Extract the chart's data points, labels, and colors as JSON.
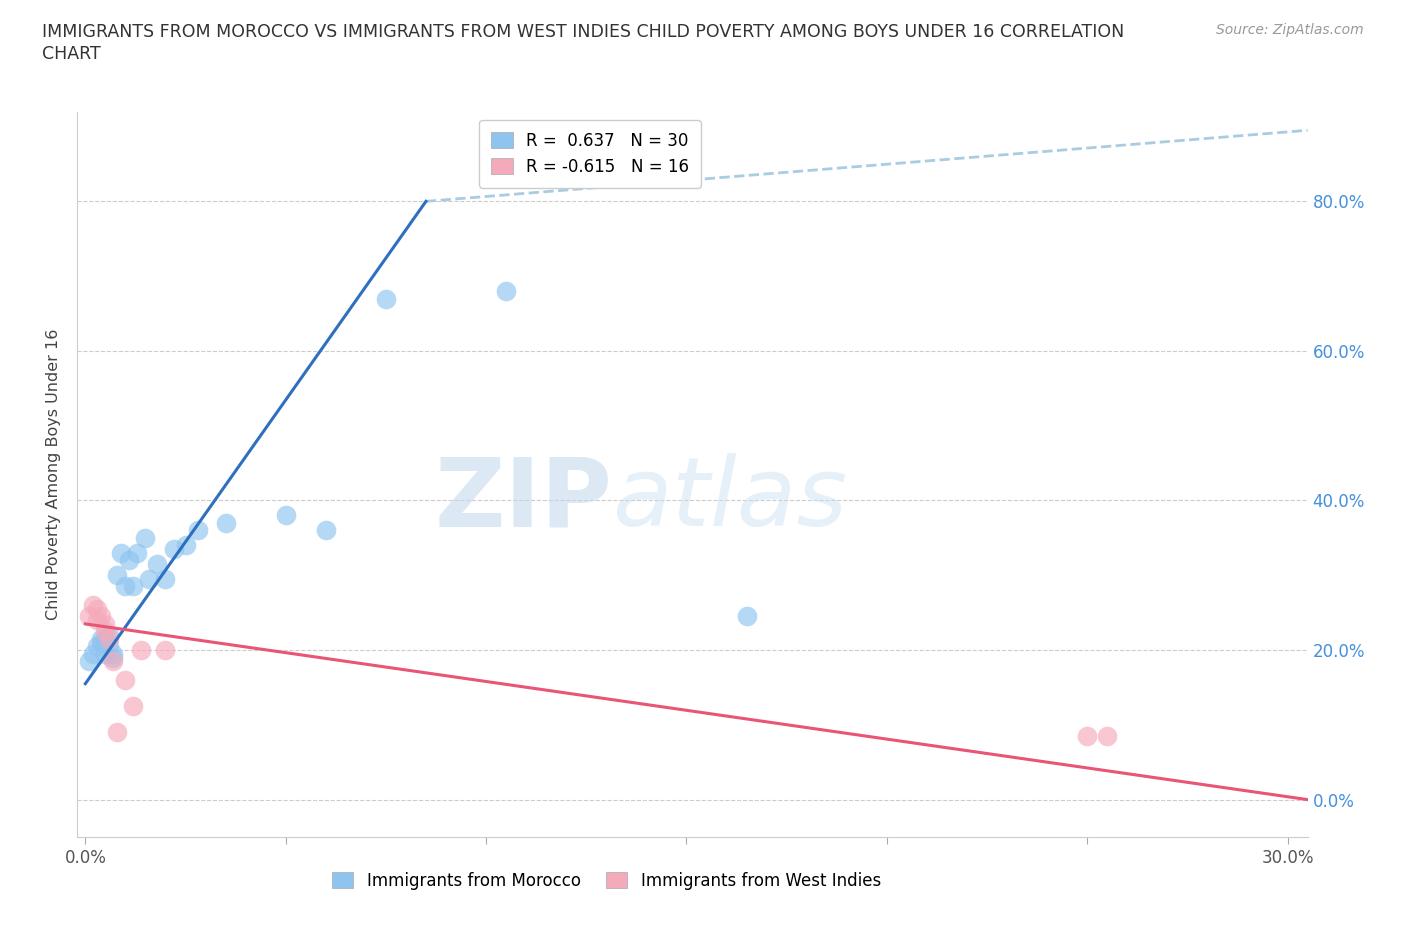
{
  "title_line1": "IMMIGRANTS FROM MOROCCO VS IMMIGRANTS FROM WEST INDIES CHILD POVERTY AMONG BOYS UNDER 16 CORRELATION",
  "title_line2": "CHART",
  "source": "Source: ZipAtlas.com",
  "ylabel": "Child Poverty Among Boys Under 16",
  "xlabel_morocco": "Immigrants from Morocco",
  "xlabel_westindies": "Immigrants from West Indies",
  "xlim": [
    -0.002,
    0.305
  ],
  "ylim": [
    -0.05,
    0.92
  ],
  "yticks": [
    0.0,
    0.2,
    0.4,
    0.6,
    0.8
  ],
  "xticks_show": [
    0.0,
    0.3
  ],
  "xticks_minor": [
    0.05,
    0.1,
    0.15,
    0.2,
    0.25
  ],
  "morocco_color": "#8EC4F0",
  "westindies_color": "#F5AABB",
  "morocco_line_color": "#2E6FBF",
  "westindies_line_color": "#E85575",
  "dashed_line_color": "#AACCE0",
  "grid_color": "#CCCCCC",
  "right_tick_color": "#4490DD",
  "r_morocco": 0.637,
  "n_morocco": 30,
  "r_westindies": -0.615,
  "n_westindies": 16,
  "watermark_zip": "ZIP",
  "watermark_atlas": "atlas",
  "morocco_scatter_x": [
    0.001,
    0.002,
    0.003,
    0.004,
    0.004,
    0.005,
    0.005,
    0.006,
    0.006,
    0.007,
    0.007,
    0.008,
    0.009,
    0.01,
    0.011,
    0.012,
    0.013,
    0.015,
    0.016,
    0.018,
    0.02,
    0.022,
    0.025,
    0.028,
    0.035,
    0.05,
    0.06,
    0.075,
    0.105,
    0.165
  ],
  "morocco_scatter_y": [
    0.185,
    0.195,
    0.205,
    0.21,
    0.215,
    0.195,
    0.215,
    0.205,
    0.22,
    0.19,
    0.195,
    0.3,
    0.33,
    0.285,
    0.32,
    0.285,
    0.33,
    0.35,
    0.295,
    0.315,
    0.295,
    0.335,
    0.34,
    0.36,
    0.37,
    0.38,
    0.36,
    0.67,
    0.68,
    0.245
  ],
  "westindies_scatter_x": [
    0.001,
    0.002,
    0.003,
    0.003,
    0.004,
    0.005,
    0.005,
    0.006,
    0.007,
    0.008,
    0.01,
    0.012,
    0.014,
    0.02,
    0.25,
    0.255
  ],
  "westindies_scatter_y": [
    0.245,
    0.26,
    0.255,
    0.24,
    0.245,
    0.235,
    0.225,
    0.215,
    0.185,
    0.09,
    0.16,
    0.125,
    0.2,
    0.2,
    0.085,
    0.085
  ],
  "morocco_trend_x": [
    0.0,
    0.085
  ],
  "morocco_trend_y": [
    0.155,
    0.8
  ],
  "westindies_trend_x": [
    0.0,
    0.305
  ],
  "westindies_trend_y": [
    0.235,
    0.0
  ],
  "dashed_line_x": [
    0.085,
    0.305
  ],
  "dashed_line_y": [
    0.8,
    0.895
  ]
}
